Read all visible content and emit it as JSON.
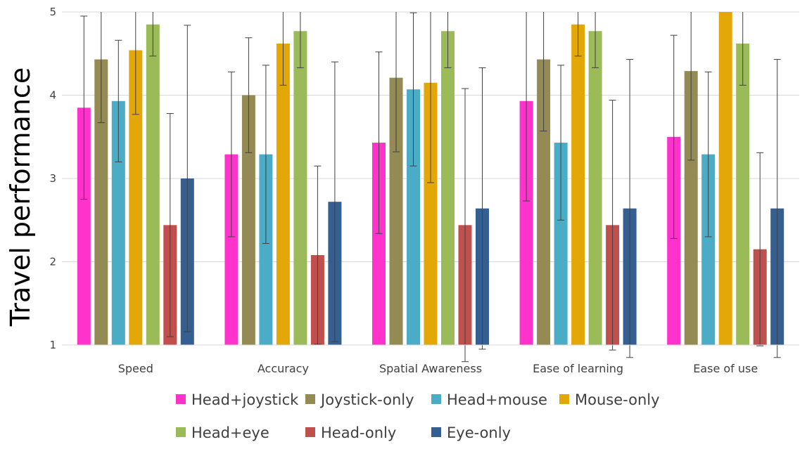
{
  "chart_data": {
    "type": "bar",
    "ylabel": "Travel performance",
    "xlabel": "",
    "ylim": [
      1,
      5
    ],
    "yticks": [
      1,
      2,
      3,
      4,
      5
    ],
    "grid": "horizontal",
    "legend_placement": "bottom",
    "categories": [
      "Speed",
      "Accuracy",
      "Spatial Awareness",
      "Ease of learning",
      "Ease of use"
    ],
    "series": [
      {
        "name": "Head+joystick",
        "color": "#ff33cc",
        "values": [
          3.85,
          3.29,
          3.43,
          3.93,
          3.5
        ],
        "error": [
          1.1,
          0.99,
          1.09,
          1.2,
          1.22
        ]
      },
      {
        "name": "Joystick-only",
        "color": "#948a54",
        "values": [
          4.43,
          4.0,
          4.21,
          4.43,
          4.29
        ],
        "error": [
          0.76,
          0.69,
          0.89,
          0.86,
          1.07
        ]
      },
      {
        "name": "Head+mouse",
        "color": "#4bacc6",
        "values": [
          3.93,
          3.29,
          4.07,
          3.43,
          3.29
        ],
        "error": [
          0.73,
          1.07,
          0.92,
          0.93,
          0.99
        ]
      },
      {
        "name": "Mouse-only",
        "color": "#e3a707",
        "values": [
          4.54,
          4.62,
          4.15,
          4.85,
          5.0
        ],
        "error": [
          0.77,
          0.5,
          1.2,
          0.38,
          0.0
        ]
      },
      {
        "name": "Head+eye",
        "color": "#9bbb59",
        "values": [
          4.85,
          4.77,
          4.77,
          4.77,
          4.62
        ],
        "error": [
          0.38,
          0.44,
          0.44,
          0.44,
          0.5
        ]
      },
      {
        "name": "Head-only",
        "color": "#c0504d",
        "values": [
          2.44,
          2.08,
          2.44,
          2.44,
          2.15
        ],
        "error": [
          1.34,
          1.07,
          1.64,
          1.5,
          1.16
        ]
      },
      {
        "name": "Eye-only",
        "color": "#365f91",
        "values": [
          3.0,
          2.72,
          2.64,
          2.64,
          2.64
        ],
        "error": [
          1.84,
          1.68,
          1.69,
          1.79,
          1.79
        ]
      }
    ]
  }
}
